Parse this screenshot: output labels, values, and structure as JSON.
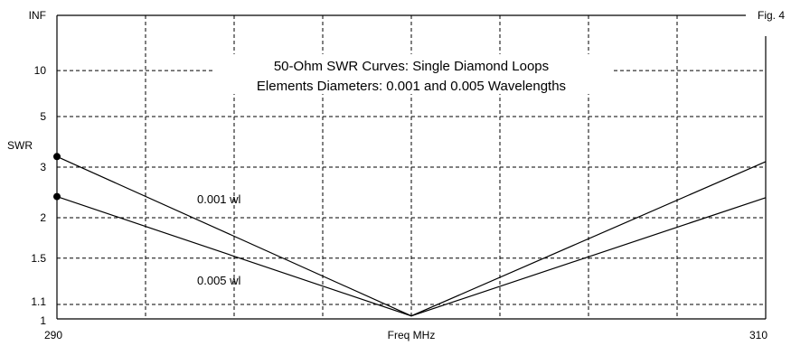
{
  "chart_data": {
    "type": "line",
    "title": "50-Ohm SWR Curves: Single Diamond Loops",
    "subtitle": "Elements Diameters: 0.001 and 0.005 Wavelengths",
    "figure_label": "Fig. 4",
    "xlabel": "Freq MHz",
    "ylabel": "SWR",
    "x_scale": "linear",
    "y_scale": "reflection-coefficient (SWR ticks, 1 to INF)",
    "xlim": [
      290,
      310
    ],
    "ylim": [
      1,
      "INF"
    ],
    "x_tick_labels": [
      "290",
      "Freq MHz",
      "310"
    ],
    "y_ticks": [
      {
        "value": 1,
        "label": "1"
      },
      {
        "value": 1.1,
        "label": "1.1"
      },
      {
        "value": 1.5,
        "label": "1.5"
      },
      {
        "value": 2,
        "label": "2"
      },
      {
        "value": 3,
        "label": "3"
      },
      {
        "value": 5,
        "label": "5"
      },
      {
        "value": 10,
        "label": "10"
      },
      {
        "value": "INF",
        "label": "INF"
      }
    ],
    "grid": true,
    "grid_style": "dashed",
    "x_grid_count": 8,
    "series": [
      {
        "name": "0.001 wl",
        "x": [
          290,
          300,
          310
        ],
        "y": [
          3.3,
          1.02,
          3.15
        ],
        "marker_at_start": true
      },
      {
        "name": "0.005 wl",
        "x": [
          290,
          300,
          310
        ],
        "y": [
          2.35,
          1.02,
          2.33
        ],
        "marker_at_start": true
      }
    ],
    "colors": {
      "line": "#000000",
      "grid": "#000000",
      "background": "#ffffff"
    }
  }
}
